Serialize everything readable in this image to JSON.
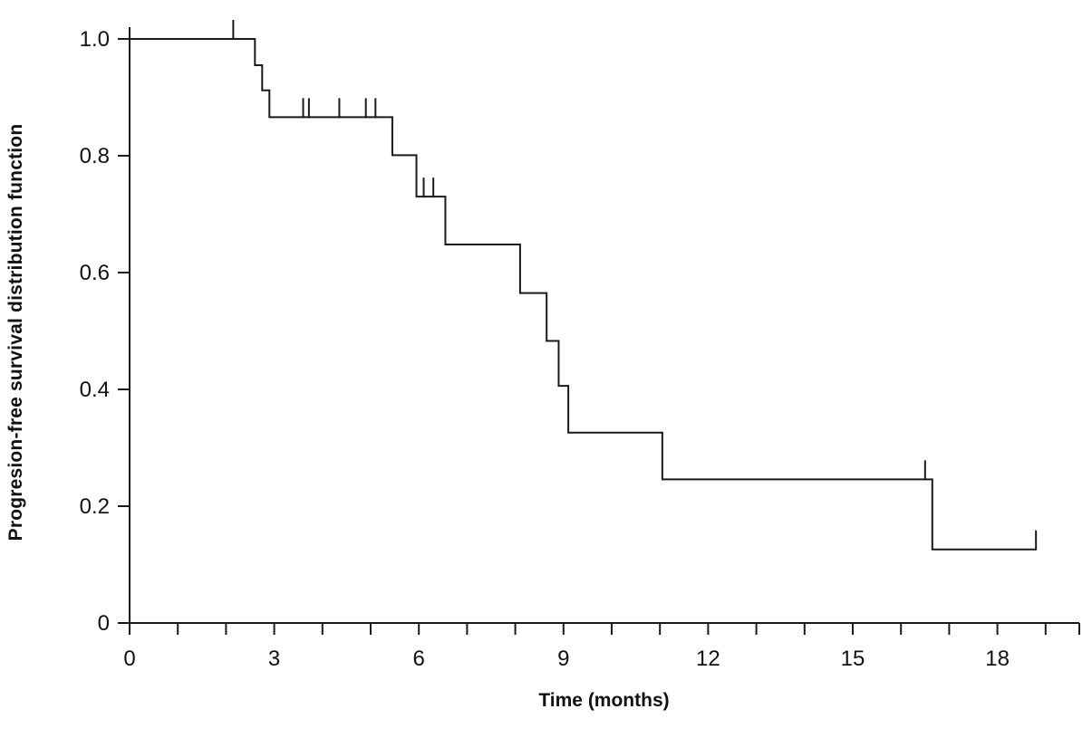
{
  "chart_data": {
    "type": "line",
    "subtype": "kaplan-meier-step",
    "title": "",
    "xlabel": "Time (months)",
    "ylabel": "Progresion-free survival distribution function",
    "xlim": [
      0,
      19.7
    ],
    "ylim": [
      0,
      1.0
    ],
    "grid": false,
    "legend": "none",
    "x_major_ticks": [
      0,
      3,
      6,
      9,
      12,
      15,
      18
    ],
    "x_major_tick_labels": [
      "0",
      "3",
      "6",
      "9",
      "12",
      "15",
      "18"
    ],
    "x_minor_tick_interval": 1,
    "y_ticks": [
      0,
      0.2,
      0.4,
      0.6,
      0.8,
      1.0
    ],
    "y_tick_labels": [
      "0",
      "0.2",
      "0.4",
      "0.6",
      "0.8",
      "1.0"
    ],
    "line_color": "#1a1a1a",
    "background_color": "#ffffff",
    "series": [
      {
        "name": "Progression-free survival",
        "steps": [
          {
            "t": 0,
            "s": 1.0
          },
          {
            "t": 2.6,
            "s": 0.955
          },
          {
            "t": 2.75,
            "s": 0.912
          },
          {
            "t": 2.9,
            "s": 0.866
          },
          {
            "t": 5.45,
            "s": 0.801
          },
          {
            "t": 5.95,
            "s": 0.73
          },
          {
            "t": 6.55,
            "s": 0.648
          },
          {
            "t": 8.1,
            "s": 0.565
          },
          {
            "t": 8.65,
            "s": 0.483
          },
          {
            "t": 8.9,
            "s": 0.406
          },
          {
            "t": 9.1,
            "s": 0.326
          },
          {
            "t": 11.05,
            "s": 0.246
          },
          {
            "t": 16.65,
            "s": 0.126
          }
        ],
        "curve_end_t": 18.8,
        "censor_marks": [
          {
            "t": 2.15,
            "s": 1.0
          },
          {
            "t": 3.6,
            "s": 0.866
          },
          {
            "t": 3.72,
            "s": 0.866
          },
          {
            "t": 4.35,
            "s": 0.866
          },
          {
            "t": 4.9,
            "s": 0.866
          },
          {
            "t": 5.1,
            "s": 0.866
          },
          {
            "t": 6.1,
            "s": 0.73
          },
          {
            "t": 6.3,
            "s": 0.73
          },
          {
            "t": 16.5,
            "s": 0.246
          },
          {
            "t": 18.8,
            "s": 0.126
          }
        ]
      }
    ]
  }
}
